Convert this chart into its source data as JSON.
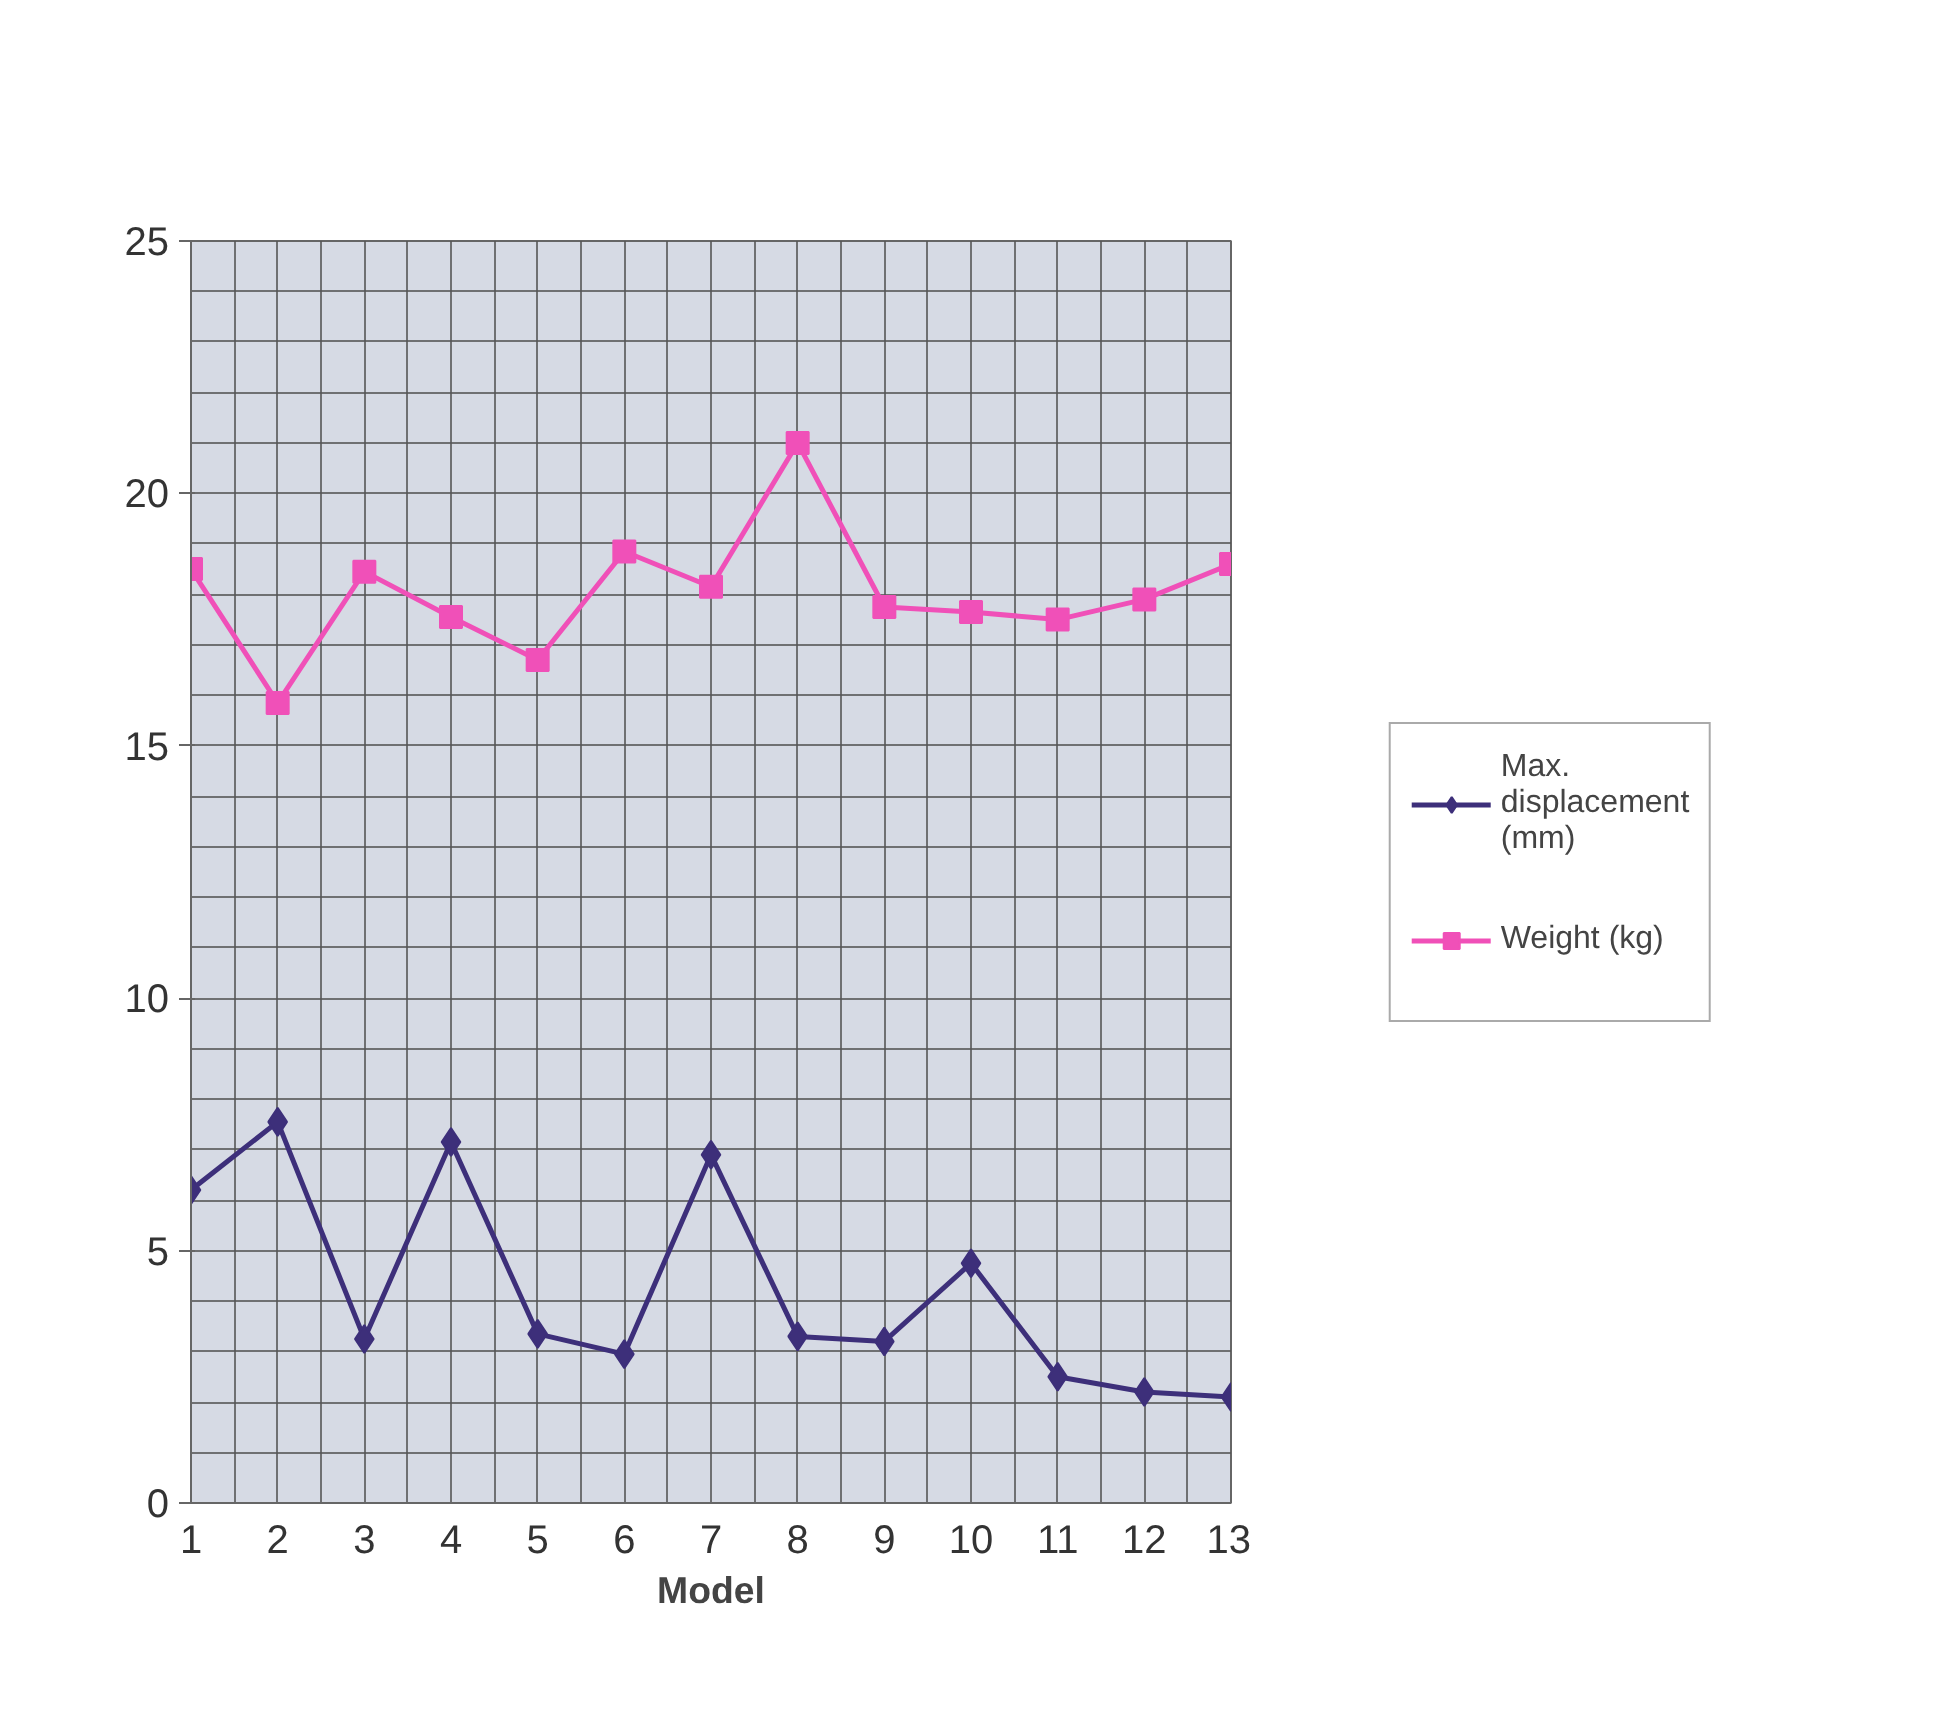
{
  "chart_data": {
    "type": "line",
    "xlabel": "Model",
    "x": [
      1,
      2,
      3,
      4,
      5,
      6,
      7,
      8,
      9,
      10,
      11,
      12,
      13
    ],
    "xlim": [
      1,
      13
    ],
    "xticks": [
      1,
      2,
      3,
      4,
      5,
      6,
      7,
      8,
      9,
      10,
      11,
      12,
      13
    ],
    "ylim": [
      0,
      25
    ],
    "yticks": [
      0,
      5,
      10,
      15,
      20,
      25
    ],
    "grid": true,
    "legend": "right",
    "series": [
      {
        "name": "Max. displacement (mm)",
        "color": "#3d2f7a",
        "marker": "diamond",
        "values": [
          6.2,
          7.55,
          3.25,
          7.15,
          3.35,
          2.95,
          6.9,
          3.3,
          3.2,
          4.75,
          2.5,
          2.2,
          2.1
        ]
      },
      {
        "name": "Weight (kg)",
        "color": "#f050b8",
        "marker": "square",
        "values": [
          18.5,
          15.85,
          18.45,
          17.55,
          16.7,
          18.85,
          18.15,
          21.0,
          17.75,
          17.65,
          17.5,
          17.9,
          18.6
        ]
      }
    ]
  }
}
